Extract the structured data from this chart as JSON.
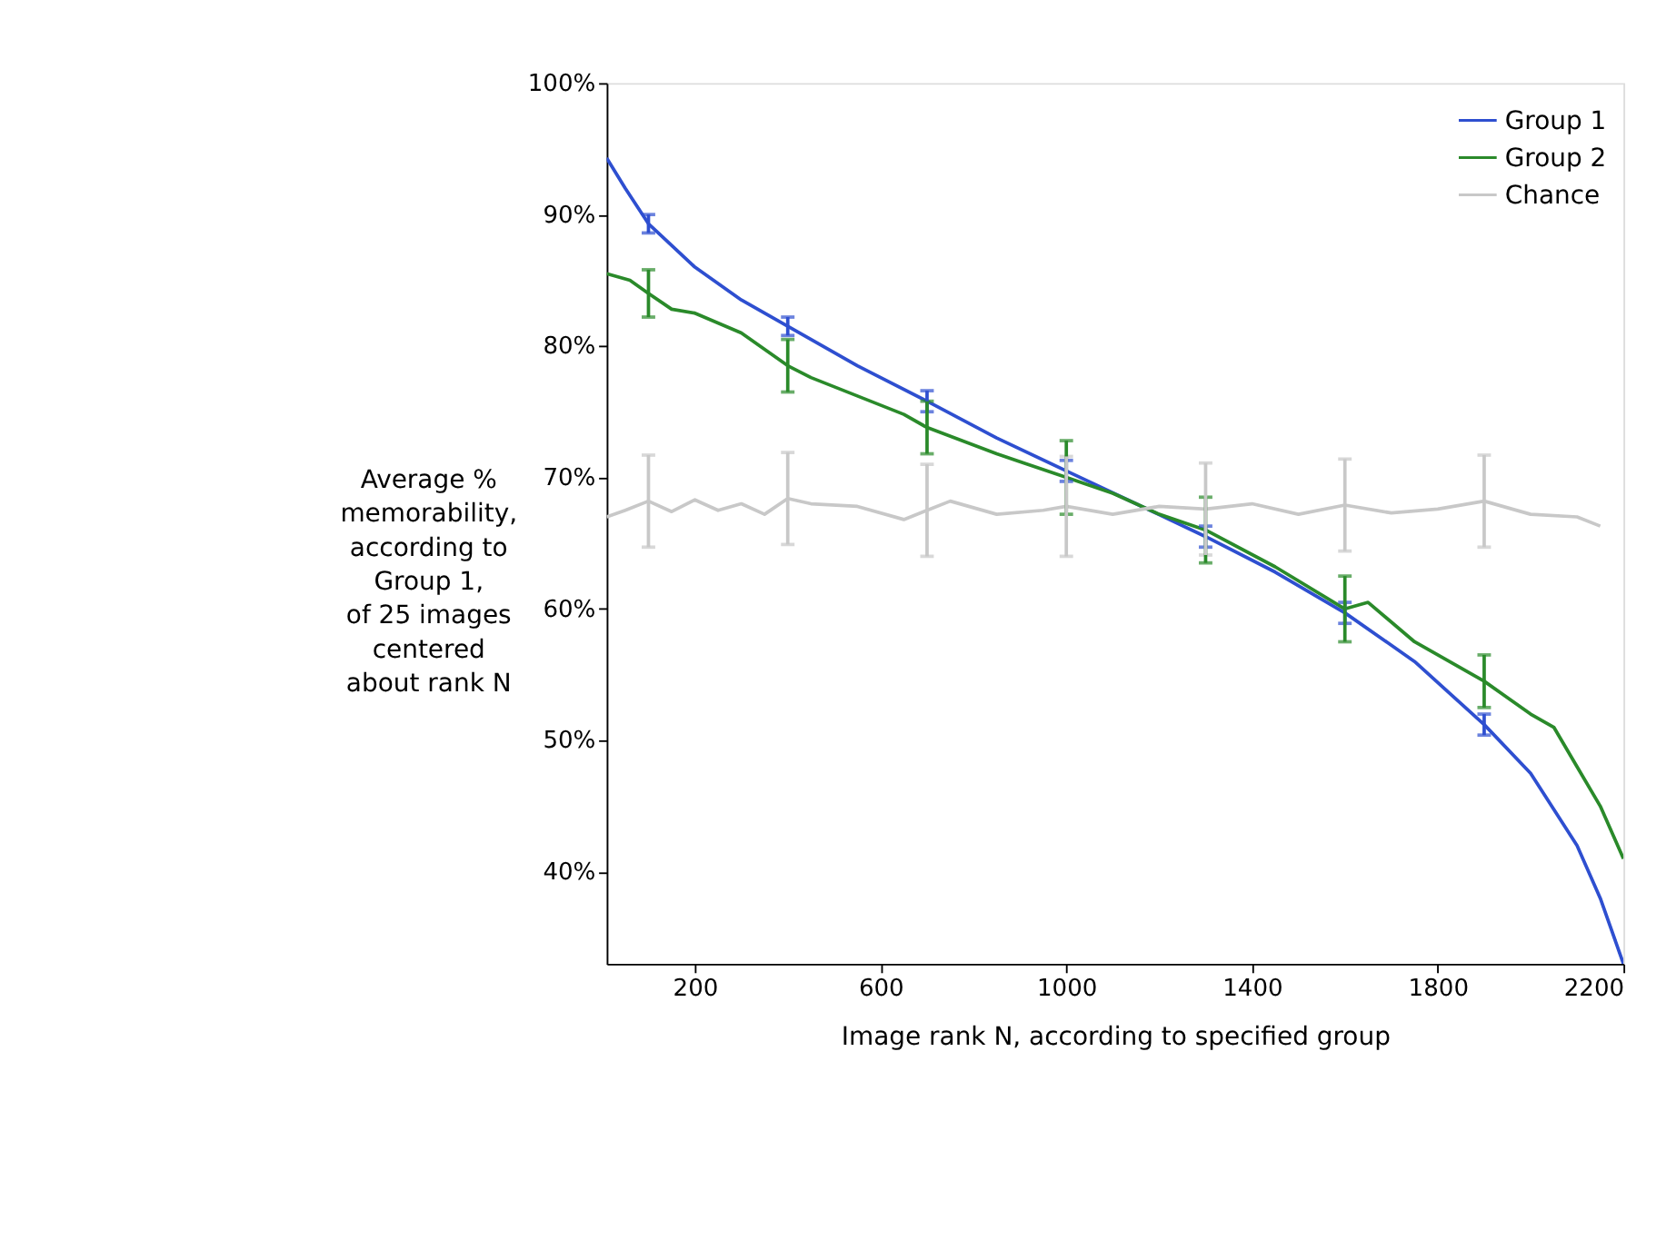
{
  "chart_data": {
    "type": "line",
    "xlabel": "Image rank N, according to specified group",
    "ylabel": "Average %\nmemorability,\naccording to\nGroup 1,\nof 25 images\ncentered\nabout rank N",
    "xlim": [
      10,
      2200
    ],
    "xticks": [
      200,
      600,
      1000,
      1400,
      1800,
      2200
    ],
    "ylim": [
      33,
      100
    ],
    "yticks": [
      {
        "value": 40,
        "label": "40%"
      },
      {
        "value": 50,
        "label": "50%"
      },
      {
        "value": 60,
        "label": "60%"
      },
      {
        "value": 70,
        "label": "70%"
      },
      {
        "value": 80,
        "label": "80%"
      },
      {
        "value": 90,
        "label": "90%"
      },
      {
        "value": 100,
        "label": "100%"
      }
    ],
    "grid": false,
    "legend": "top right",
    "marker": "none",
    "line_style": "solid",
    "series": [
      {
        "name": "Group 1",
        "color": "#2e4fd0",
        "x": [
          10,
          50,
          100,
          200,
          300,
          400,
          550,
          700,
          850,
          1000,
          1150,
          1300,
          1450,
          1600,
          1750,
          1900,
          2000,
          2100,
          2150,
          2200
        ],
        "values": [
          94.3,
          92,
          89.3,
          86,
          83.5,
          81.5,
          78.5,
          75.8,
          73,
          70.5,
          68,
          65.5,
          62.8,
          59.7,
          56,
          51.2,
          47.5,
          42,
          38,
          33
        ],
        "errors": [
          null,
          null,
          0.7,
          null,
          null,
          0.7,
          null,
          0.8,
          null,
          0.8,
          null,
          0.8,
          null,
          0.8,
          null,
          0.8,
          null,
          null,
          null,
          null
        ]
      },
      {
        "name": "Group 2",
        "color": "#2a8a2a",
        "x": [
          10,
          60,
          100,
          150,
          200,
          300,
          400,
          450,
          550,
          650,
          700,
          850,
          1000,
          1100,
          1200,
          1300,
          1450,
          1600,
          1650,
          1750,
          1900,
          2000,
          2050,
          2100,
          2150,
          2200
        ],
        "values": [
          85.5,
          85,
          84,
          82.8,
          82.5,
          81,
          78.5,
          77.6,
          76.2,
          74.8,
          73.8,
          71.8,
          70,
          68.8,
          67.2,
          66,
          63.2,
          60,
          60.5,
          57.5,
          54.5,
          52,
          51,
          48,
          45,
          41
        ],
        "errors": [
          null,
          null,
          1.8,
          null,
          null,
          null,
          2,
          null,
          null,
          null,
          2,
          null,
          2.8,
          null,
          null,
          2.5,
          null,
          2.5,
          null,
          null,
          2,
          null,
          null,
          null,
          null,
          null
        ]
      },
      {
        "name": "Chance",
        "color": "#c8c8c8",
        "x": [
          10,
          50,
          100,
          150,
          200,
          250,
          300,
          350,
          400,
          450,
          550,
          650,
          700,
          750,
          850,
          950,
          1000,
          1100,
          1200,
          1300,
          1400,
          1500,
          1600,
          1700,
          1800,
          1900,
          2000,
          2100,
          2150
        ],
        "values": [
          67,
          67.5,
          68.2,
          67.4,
          68.3,
          67.5,
          68,
          67.2,
          68.4,
          68,
          67.8,
          66.8,
          67.5,
          68.2,
          67.2,
          67.5,
          67.8,
          67.2,
          67.8,
          67.6,
          68,
          67.2,
          67.9,
          67.3,
          67.6,
          68.2,
          67.2,
          67,
          66.3
        ],
        "errors": [
          null,
          null,
          3.5,
          null,
          null,
          null,
          null,
          null,
          3.5,
          null,
          null,
          null,
          3.5,
          null,
          null,
          null,
          3.8,
          null,
          null,
          3.5,
          null,
          null,
          3.5,
          null,
          null,
          3.5,
          null,
          null,
          null
        ]
      }
    ]
  }
}
